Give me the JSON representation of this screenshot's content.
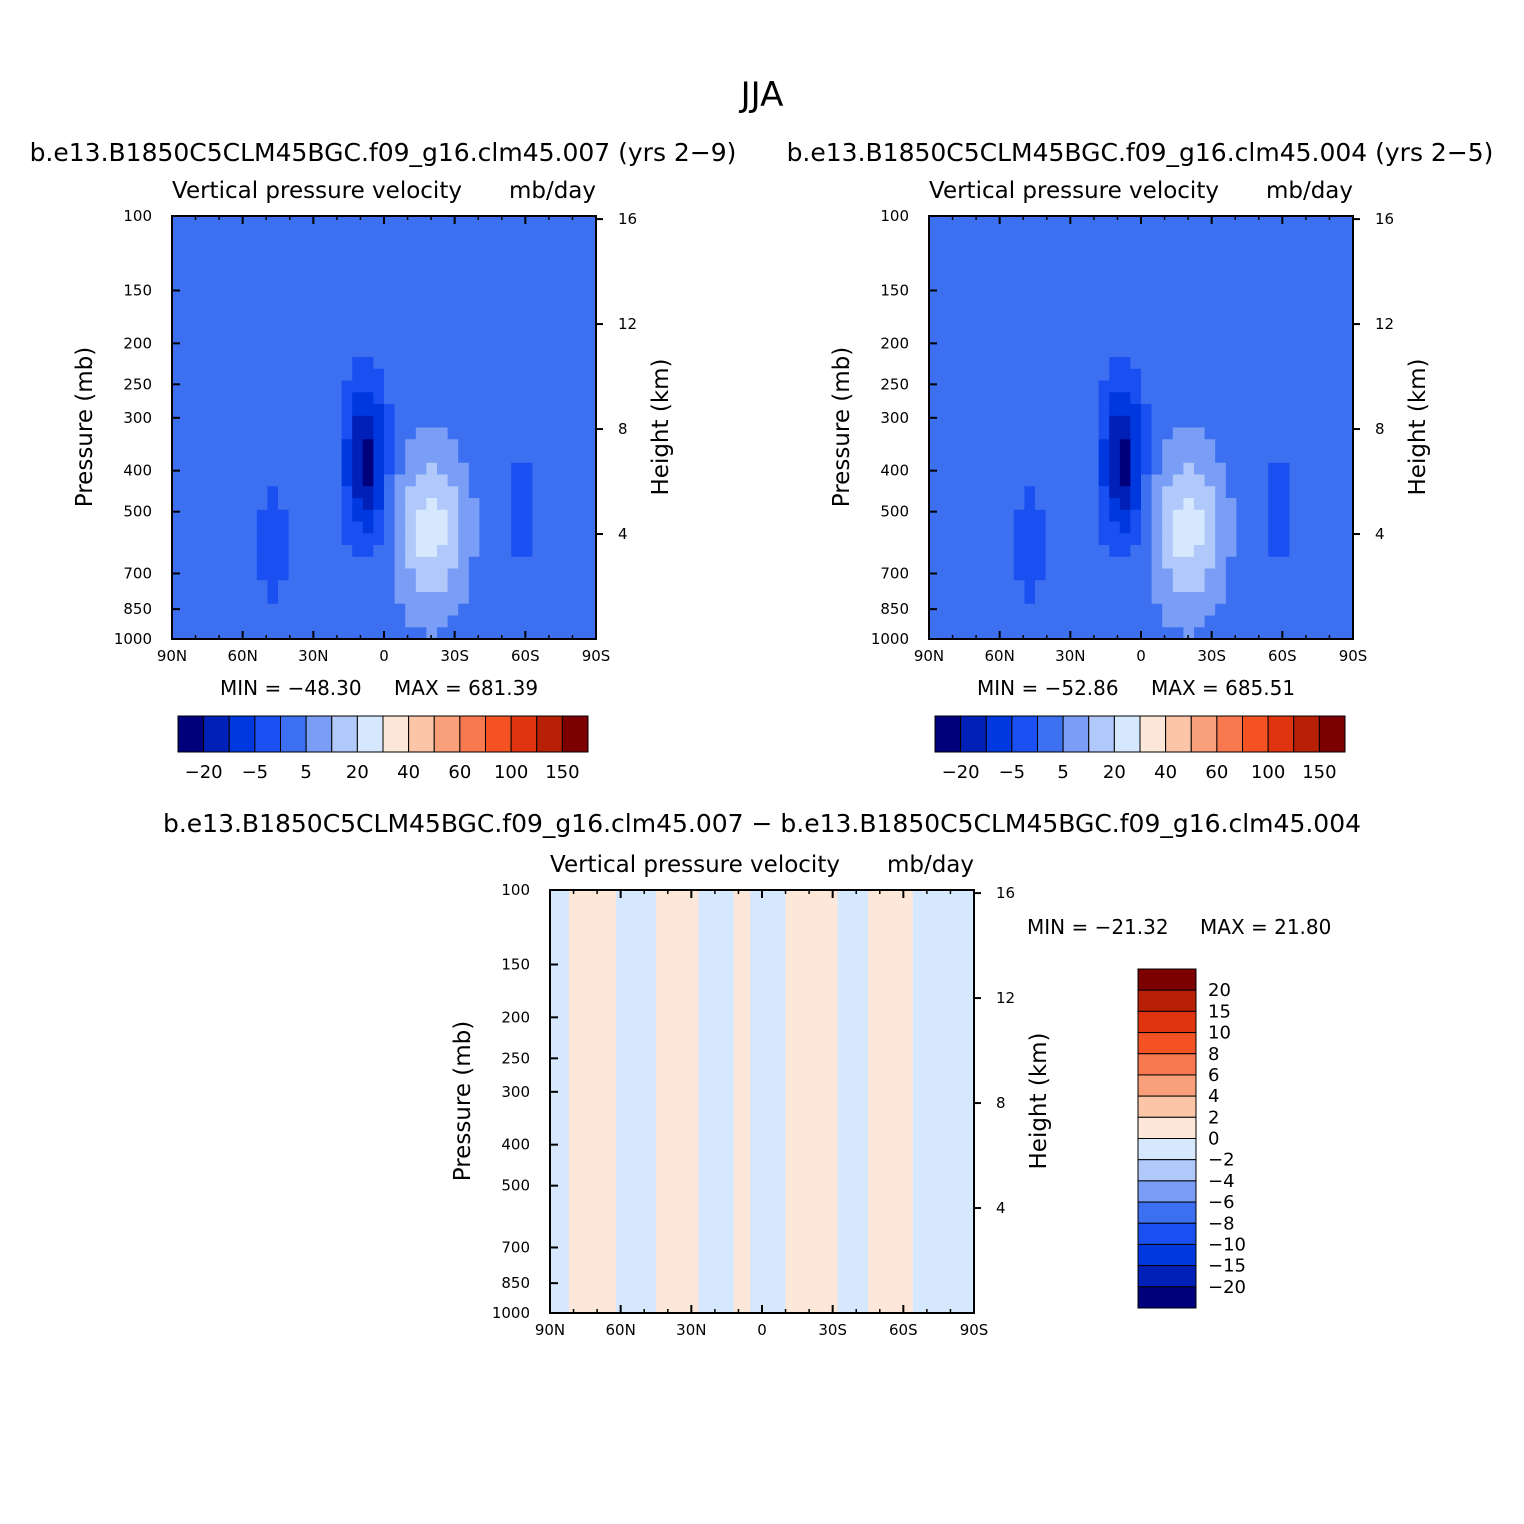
{
  "figure": {
    "title": "JJA"
  },
  "colors": {
    "plot_frame": "#000000",
    "background": "#ffffff"
  },
  "chart_data": [
    {
      "type": "heatmap",
      "title": "b.e13.B1850C5CLM45BGC.f09_g16.clm45.007 (yrs 2−9)",
      "variable": "Vertical pressure velocity",
      "units": "mb/day",
      "xlabel": "",
      "ylabel": "Pressure (mb)",
      "y2label": "Height (km)",
      "x_ticks": [
        "90N",
        "60N",
        "30N",
        "0",
        "30S",
        "60S",
        "90S"
      ],
      "x_range": [
        90,
        -90
      ],
      "y_ticks": [
        100,
        150,
        200,
        250,
        300,
        400,
        500,
        700,
        850,
        1000
      ],
      "y_range": [
        1000,
        100
      ],
      "y_scale": "log",
      "y2_ticks": [
        4,
        8,
        12,
        16
      ],
      "min_label": "MIN = −48.30",
      "max_label": "MAX = 681.39",
      "min": -48.3,
      "max": 681.39,
      "colorbar": {
        "orientation": "horizontal",
        "labels": [
          "−20",
          "−5",
          "5",
          "20",
          "40",
          "60",
          "100",
          "150"
        ],
        "colors": [
          "#00007c",
          "#0020b8",
          "#0038e0",
          "#1a50f2",
          "#3c70f0",
          "#7a9ef5",
          "#b0c8fa",
          "#d6e8fd",
          "#fde7d8",
          "#fcc5a8",
          "#f9a07a",
          "#f87850",
          "#f55224",
          "#e03410",
          "#b82006",
          "#7c0000"
        ]
      },
      "fields": [
        {
          "base_level": 4,
          "lat_peak": 8,
          "sigma_lat": 6,
          "p_peak": 380,
          "sigma_logp": 0.28,
          "amp": -4
        },
        {
          "base_level": 4,
          "lat_peak": -20,
          "sigma_lat": 10,
          "p_peak": 550,
          "sigma_logp": 0.3,
          "amp": 3
        },
        {
          "base_level": 4,
          "lat_peak": 47,
          "sigma_lat": 5,
          "p_peak": 600,
          "sigma_logp": 0.25,
          "amp": -1
        },
        {
          "base_level": 4,
          "lat_peak": -58,
          "sigma_lat": 4,
          "p_peak": 500,
          "sigma_logp": 0.25,
          "amp": -1
        }
      ]
    },
    {
      "type": "heatmap",
      "title": "b.e13.B1850C5CLM45BGC.f09_g16.clm45.004 (yrs 2−5)",
      "variable": "Vertical pressure velocity",
      "units": "mb/day",
      "xlabel": "",
      "ylabel": "Pressure (mb)",
      "y2label": "Height (km)",
      "x_ticks": [
        "90N",
        "60N",
        "30N",
        "0",
        "30S",
        "60S",
        "90S"
      ],
      "x_range": [
        90,
        -90
      ],
      "y_ticks": [
        100,
        150,
        200,
        250,
        300,
        400,
        500,
        700,
        850,
        1000
      ],
      "y_range": [
        1000,
        100
      ],
      "y_scale": "log",
      "y2_ticks": [
        4,
        8,
        12,
        16
      ],
      "min_label": "MIN = −52.86",
      "max_label": "MAX = 685.51",
      "min": -52.86,
      "max": 685.51,
      "colorbar": {
        "orientation": "horizontal",
        "labels": [
          "−20",
          "−5",
          "5",
          "20",
          "40",
          "60",
          "100",
          "150"
        ],
        "colors": [
          "#00007c",
          "#0020b8",
          "#0038e0",
          "#1a50f2",
          "#3c70f0",
          "#7a9ef5",
          "#b0c8fa",
          "#d6e8fd",
          "#fde7d8",
          "#fcc5a8",
          "#f9a07a",
          "#f87850",
          "#f55224",
          "#e03410",
          "#b82006",
          "#7c0000"
        ]
      },
      "fields": [
        {
          "base_level": 4,
          "lat_peak": 8,
          "sigma_lat": 6,
          "p_peak": 380,
          "sigma_logp": 0.28,
          "amp": -4
        },
        {
          "base_level": 4,
          "lat_peak": -20,
          "sigma_lat": 10,
          "p_peak": 550,
          "sigma_logp": 0.3,
          "amp": 3
        },
        {
          "base_level": 4,
          "lat_peak": 47,
          "sigma_lat": 5,
          "p_peak": 600,
          "sigma_logp": 0.25,
          "amp": -1
        },
        {
          "base_level": 4,
          "lat_peak": -58,
          "sigma_lat": 4,
          "p_peak": 500,
          "sigma_logp": 0.25,
          "amp": -1
        }
      ]
    },
    {
      "type": "heatmap",
      "title": "b.e13.B1850C5CLM45BGC.f09_g16.clm45.007 − b.e13.B1850C5CLM45BGC.f09_g16.clm45.004",
      "variable": "Vertical pressure velocity",
      "units": "mb/day",
      "xlabel": "",
      "ylabel": "Pressure (mb)",
      "y2label": "Height (km)",
      "x_ticks": [
        "90N",
        "60N",
        "30N",
        "0",
        "30S",
        "60S",
        "90S"
      ],
      "x_range": [
        90,
        -90
      ],
      "y_ticks": [
        100,
        150,
        200,
        250,
        300,
        400,
        500,
        700,
        850,
        1000
      ],
      "y_range": [
        1000,
        100
      ],
      "y_scale": "log",
      "y2_ticks": [
        4,
        8,
        12,
        16
      ],
      "min_label": "MIN = −21.32",
      "max_label": "MAX =   21.80",
      "min": -21.32,
      "max": 21.8,
      "colorbar": {
        "orientation": "vertical",
        "labels": [
          "20",
          "15",
          "10",
          "8",
          "6",
          "4",
          "2",
          "0",
          "−2",
          "−4",
          "−6",
          "−8",
          "−10",
          "−15",
          "−20"
        ],
        "colors": [
          "#7c0000",
          "#b82006",
          "#e03410",
          "#f55224",
          "#f87850",
          "#f9a07a",
          "#fcc5a8",
          "#fde7d8",
          "#d6e8fd",
          "#b0c8fa",
          "#7a9ef5",
          "#3c70f0",
          "#1a50f2",
          "#0038e0",
          "#0020b8",
          "#00007c"
        ]
      },
      "bands": [
        {
          "lat_start": 90,
          "lat_end": 82,
          "level": 8
        },
        {
          "lat_start": 82,
          "lat_end": 62,
          "level": 7
        },
        {
          "lat_start": 62,
          "lat_end": 45,
          "level": 8
        },
        {
          "lat_start": 45,
          "lat_end": 27,
          "level": 7
        },
        {
          "lat_start": 27,
          "lat_end": 12,
          "level": 8
        },
        {
          "lat_start": 12,
          "lat_end": 5,
          "level": 7
        },
        {
          "lat_start": 5,
          "lat_end": -10,
          "level": 8
        },
        {
          "lat_start": -10,
          "lat_end": -32,
          "level": 7
        },
        {
          "lat_start": -32,
          "lat_end": -45,
          "level": 8
        },
        {
          "lat_start": -45,
          "lat_end": -64,
          "level": 7
        },
        {
          "lat_start": -64,
          "lat_end": -90,
          "level": 8
        }
      ]
    }
  ]
}
